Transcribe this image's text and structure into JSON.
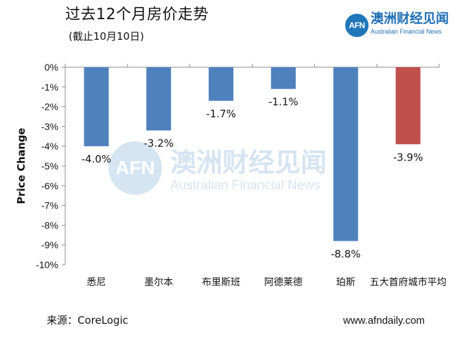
{
  "header": {
    "title": "过去12个月房价走势",
    "subtitle": "(截止10月10日)"
  },
  "logo": {
    "badge": "AFN",
    "cn": "澳洲财经见闻",
    "en": "Australian Financial News"
  },
  "watermark": {
    "badge": "AFN",
    "cn": "澳洲财经见闻",
    "en": "Australian Financial News"
  },
  "footer": {
    "source": "来源：CoreLogic",
    "website": "www.afndaily.com"
  },
  "colors": {
    "bar_blue": "#4f81bd",
    "bar_red": "#c0504d",
    "axis": "#8c8c8c",
    "text": "#111111"
  },
  "chart_data": {
    "type": "bar",
    "title": "过去12个月房价走势",
    "subtitle": "(截止10月10日)",
    "xlabel": "",
    "ylabel": "Price Change",
    "ylim": [
      -10,
      0
    ],
    "yticks": [
      "0%",
      "-1%",
      "-2%",
      "-3%",
      "-4%",
      "-5%",
      "-6%",
      "-7%",
      "-8%",
      "-9%",
      "-10%"
    ],
    "categories": [
      "悉尼",
      "墨尔本",
      "布里斯班",
      "阿德莱德",
      "珀斯",
      "五大首府城市平均"
    ],
    "values": [
      -4.0,
      -3.2,
      -1.7,
      -1.1,
      -8.8,
      -3.9
    ],
    "data_labels": [
      "-4.0%",
      "-3.2%",
      "-1.7%",
      "-1.1%",
      "-8.8%",
      "-3.9%"
    ],
    "highlight_index": 5,
    "grid": false,
    "legend": "none"
  }
}
